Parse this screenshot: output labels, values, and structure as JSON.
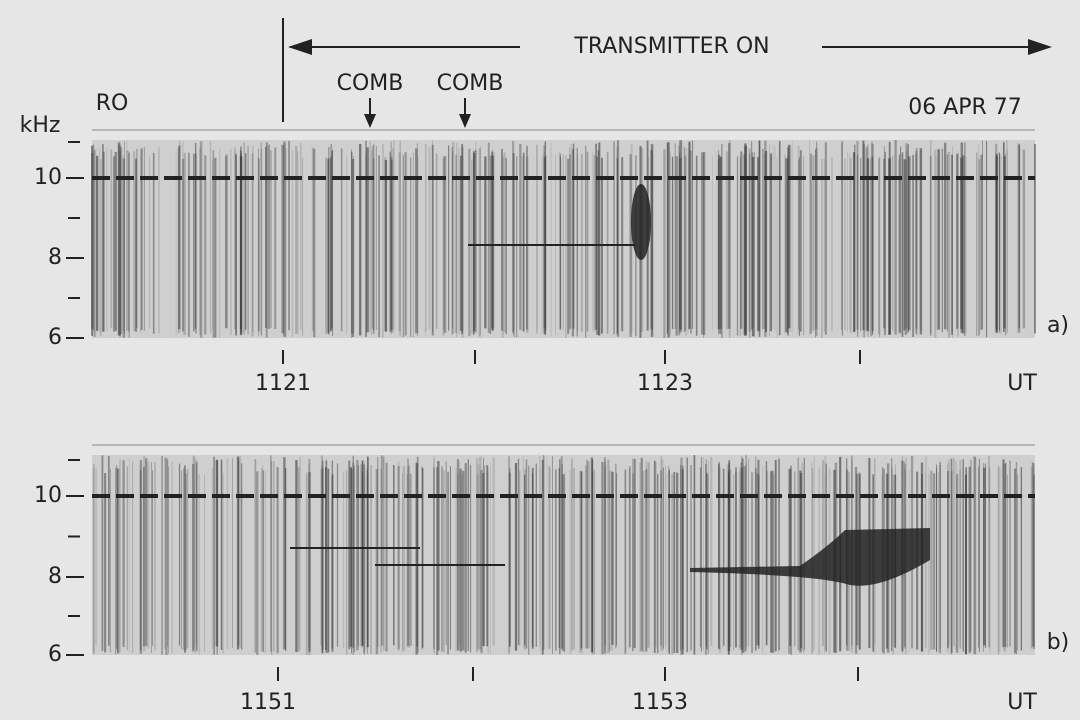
{
  "header": {
    "transmitter": "TRANSMITTER ON",
    "comb_labels": [
      "COMB",
      "COMB"
    ],
    "station": "RO",
    "date": "06 APR 77",
    "unit": "kHz"
  },
  "panels": [
    {
      "label": "a)",
      "yticks": [
        "6",
        "8",
        "10"
      ],
      "xticks": [
        "1121",
        "1123"
      ],
      "x_unit": "UT"
    },
    {
      "label": "b)",
      "yticks": [
        "6",
        "8",
        "10"
      ],
      "xticks": [
        "1151",
        "1153"
      ],
      "x_unit": "UT"
    }
  ]
}
